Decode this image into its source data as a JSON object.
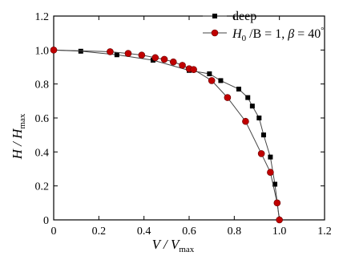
{
  "chart_data": {
    "type": "line",
    "xlabel": "V / V",
    "xlabel_sub": "max",
    "ylabel": "H / H",
    "ylabel_sub": "max",
    "xlim": [
      0,
      1.2
    ],
    "ylim": [
      0,
      1.2
    ],
    "x_ticks": [
      "0",
      "0.2",
      "0.4",
      "0.6",
      "0.8",
      "1.0",
      "1.2"
    ],
    "y_ticks": [
      "0",
      "0.2",
      "0.4",
      "0.6",
      "0.8",
      "1.0",
      "1.2"
    ],
    "grid": false,
    "legend_position": "top-right",
    "series": [
      {
        "name": "deep",
        "marker": "square",
        "color": "#000000",
        "line_color": "#444444",
        "x": [
          0.0,
          0.12,
          0.28,
          0.44,
          0.6,
          0.69,
          0.74,
          0.82,
          0.86,
          0.88,
          0.91,
          0.93,
          0.96,
          0.98,
          1.0
        ],
        "y": [
          1.0,
          0.993,
          0.972,
          0.94,
          0.88,
          0.86,
          0.82,
          0.77,
          0.72,
          0.67,
          0.6,
          0.5,
          0.37,
          0.21,
          0.0
        ]
      },
      {
        "name": "H0/B=1, β=40°",
        "legend_parts": {
          "h": "H",
          "sub": "0",
          "rest": " /B = 1, ",
          "beta": "β",
          "eq": " = 40",
          "deg": "°"
        },
        "marker": "circle",
        "color": "#c00000",
        "line_color": "#444444",
        "x": [
          0.0,
          0.25,
          0.33,
          0.39,
          0.45,
          0.49,
          0.53,
          0.57,
          0.6,
          0.62,
          0.7,
          0.77,
          0.85,
          0.92,
          0.96,
          0.99,
          1.0
        ],
        "y": [
          1.0,
          0.99,
          0.98,
          0.97,
          0.955,
          0.945,
          0.93,
          0.91,
          0.89,
          0.885,
          0.82,
          0.72,
          0.58,
          0.39,
          0.28,
          0.1,
          0.0
        ]
      }
    ]
  }
}
